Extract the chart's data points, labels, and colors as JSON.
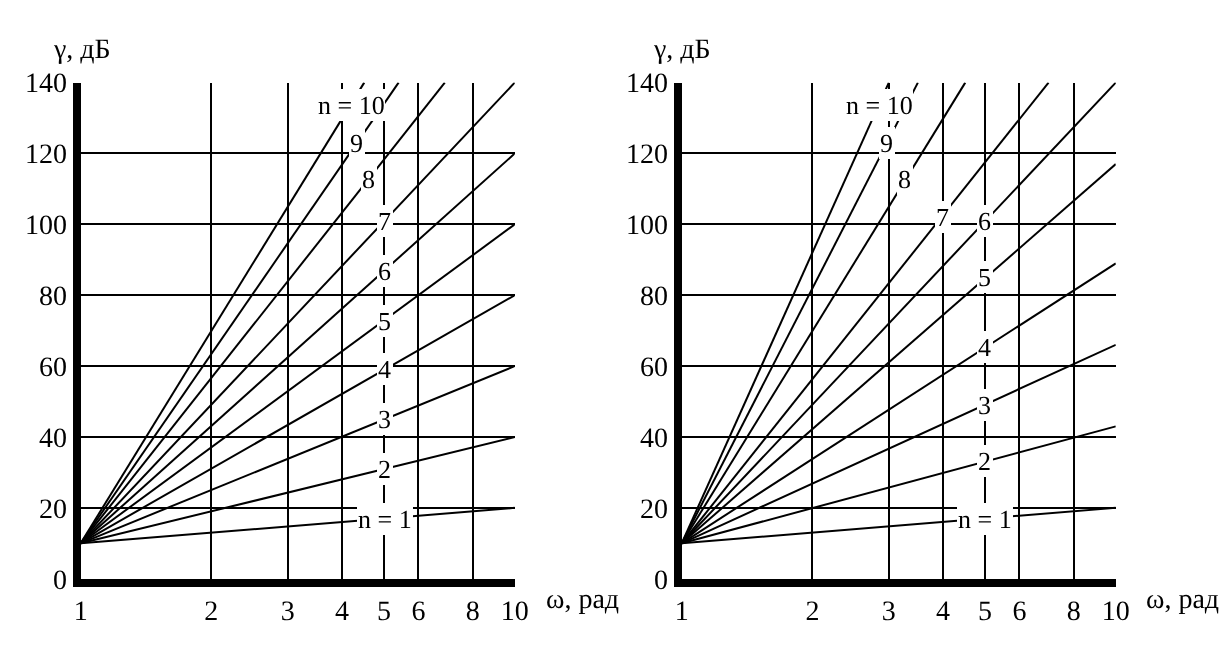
{
  "chart_data": [
    {
      "type": "line",
      "xlabel": "ω, рад",
      "ylabel": "γ, дБ",
      "log": "x",
      "grid": true,
      "marker": "none",
      "line_style": "solid",
      "xlim": [
        1,
        10
      ],
      "ylim": [
        0,
        140
      ],
      "xticks": [
        1,
        2,
        3,
        4,
        5,
        6,
        8,
        10
      ],
      "yticks": [
        0,
        20,
        40,
        60,
        80,
        100,
        120,
        140
      ],
      "series": [
        {
          "name": "n = 1",
          "color": "#000000",
          "x": [
            1,
            10
          ],
          "values": [
            10,
            20
          ]
        },
        {
          "name": "2",
          "color": "#000000",
          "x": [
            1,
            10
          ],
          "values": [
            10,
            40
          ]
        },
        {
          "name": "3",
          "color": "#000000",
          "x": [
            1,
            10
          ],
          "values": [
            10,
            60
          ]
        },
        {
          "name": "4",
          "color": "#000000",
          "x": [
            1,
            10
          ],
          "values": [
            10,
            80
          ]
        },
        {
          "name": "5",
          "color": "#000000",
          "x": [
            1,
            10
          ],
          "values": [
            10,
            100
          ]
        },
        {
          "name": "6",
          "color": "#000000",
          "x": [
            1,
            10
          ],
          "values": [
            10,
            120
          ]
        },
        {
          "name": "7",
          "color": "#000000",
          "x": [
            1,
            10
          ],
          "values": [
            10,
            140
          ]
        },
        {
          "name": "8",
          "color": "#000000",
          "x": [
            1,
            6.9
          ],
          "values": [
            10,
            140
          ]
        },
        {
          "name": "9",
          "color": "#000000",
          "x": [
            1,
            5.4
          ],
          "values": [
            10,
            140
          ]
        },
        {
          "name": "n = 10",
          "color": "#000000",
          "x": [
            1,
            4.5
          ],
          "values": [
            10,
            140
          ]
        }
      ]
    },
    {
      "type": "line",
      "xlabel": "ω, рад",
      "ylabel": "γ, дБ",
      "log": "x",
      "grid": true,
      "marker": "none",
      "line_style": "solid",
      "xlim": [
        1,
        10
      ],
      "ylim": [
        0,
        140
      ],
      "xticks": [
        1,
        2,
        3,
        4,
        5,
        6,
        8,
        10
      ],
      "yticks": [
        0,
        20,
        40,
        60,
        80,
        100,
        120,
        140
      ],
      "series": [
        {
          "name": "n = 1",
          "color": "#000000",
          "x": [
            1,
            10
          ],
          "values": [
            10,
            20
          ]
        },
        {
          "name": "2",
          "color": "#000000",
          "x": [
            1,
            10
          ],
          "values": [
            10,
            43
          ]
        },
        {
          "name": "3",
          "color": "#000000",
          "x": [
            1,
            10
          ],
          "values": [
            10,
            66
          ]
        },
        {
          "name": "4",
          "color": "#000000",
          "x": [
            1,
            10
          ],
          "values": [
            10,
            89
          ]
        },
        {
          "name": "5",
          "color": "#000000",
          "x": [
            1,
            10
          ],
          "values": [
            10,
            117
          ]
        },
        {
          "name": "6",
          "color": "#000000",
          "x": [
            1,
            10
          ],
          "values": [
            10,
            140
          ]
        },
        {
          "name": "7",
          "color": "#000000",
          "x": [
            1,
            7.0
          ],
          "values": [
            10,
            140
          ]
        },
        {
          "name": "8",
          "color": "#000000",
          "x": [
            1,
            4.5
          ],
          "values": [
            10,
            140
          ]
        },
        {
          "name": "9",
          "color": "#000000",
          "x": [
            1,
            3.5
          ],
          "values": [
            10,
            140
          ]
        },
        {
          "name": "n = 10",
          "color": "#000000",
          "x": [
            1,
            3.0
          ],
          "values": [
            10,
            140
          ]
        }
      ]
    }
  ]
}
